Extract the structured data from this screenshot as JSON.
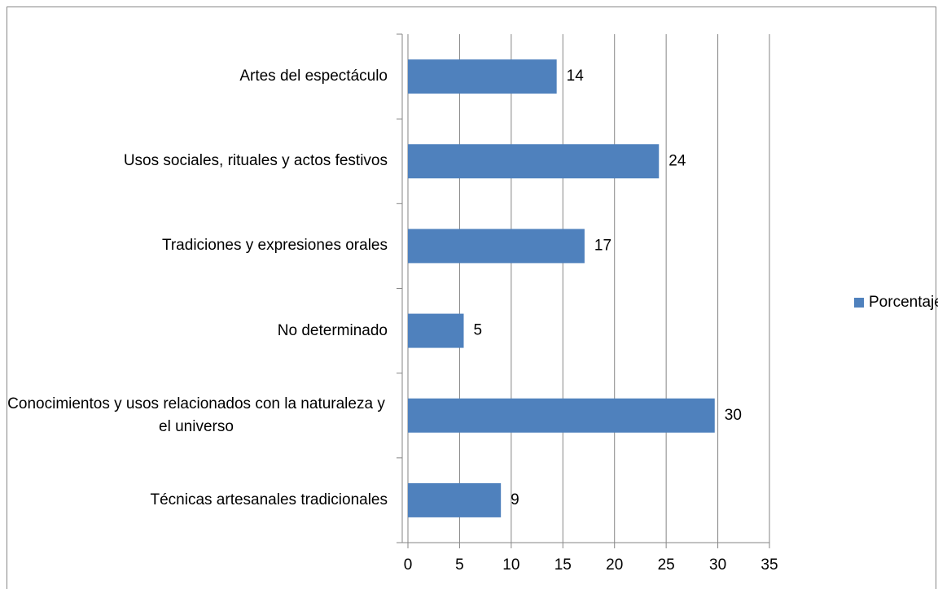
{
  "chart_data": {
    "type": "bar",
    "orientation": "horizontal",
    "categories": [
      "Artes del espectáculo",
      "Usos sociales, rituales y actos festivos",
      "Tradiciones y expresiones orales",
      "No determinado",
      "Conocimientos y usos relacionados con la naturaleza y el universo",
      "Técnicas artesanales tradicionales"
    ],
    "series": [
      {
        "name": "Porcentaje",
        "color": "#4f81bd",
        "values": [
          14.4,
          24.3,
          17.1,
          5.4,
          29.7,
          9.0
        ],
        "value_labels": [
          "14",
          "24",
          "17",
          "5",
          "30",
          "9"
        ]
      }
    ],
    "xlim": [
      0,
      35
    ],
    "xticks": [
      0,
      5,
      10,
      15,
      20,
      25,
      30,
      35
    ],
    "grid": true,
    "legend": "right"
  }
}
